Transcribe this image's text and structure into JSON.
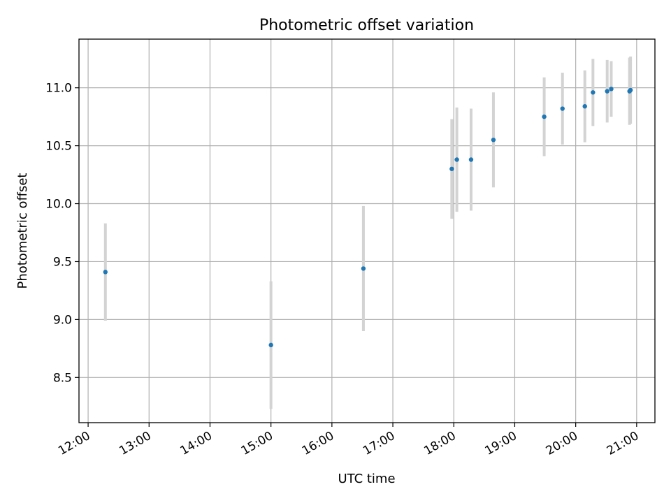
{
  "chart_data": {
    "type": "scatter",
    "title": "Photometric offset variation",
    "xlabel": "UTC time",
    "ylabel": "Photometric offset",
    "x_ticks": [
      "12:00",
      "13:00",
      "14:00",
      "15:00",
      "16:00",
      "17:00",
      "18:00",
      "19:00",
      "20:00",
      "21:00"
    ],
    "y_ticks": [
      "8.5",
      "9.0",
      "9.5",
      "10.0",
      "10.5",
      "11.0"
    ],
    "xlim": [
      "11:51",
      "21:18"
    ],
    "ylim": [
      8.11,
      11.42
    ],
    "grid": true,
    "colors": {
      "point": "#1f77b4",
      "errorbar": "#d3d3d3",
      "grid": "#b0b0b0"
    },
    "series": [
      {
        "points": [
          {
            "x": "12:17",
            "y": 9.41,
            "err": 0.42
          },
          {
            "x": "15:00",
            "y": 8.78,
            "err": 0.55
          },
          {
            "x": "16:31",
            "y": 9.44,
            "err": 0.54
          },
          {
            "x": "17:58",
            "y": 10.3,
            "err": 0.43
          },
          {
            "x": "18:03",
            "y": 10.38,
            "err": 0.45
          },
          {
            "x": "18:17",
            "y": 10.38,
            "err": 0.44
          },
          {
            "x": "18:39",
            "y": 10.55,
            "err": 0.41
          },
          {
            "x": "19:29",
            "y": 10.75,
            "err": 0.34
          },
          {
            "x": "19:47",
            "y": 10.82,
            "err": 0.31
          },
          {
            "x": "20:09",
            "y": 10.84,
            "err": 0.31
          },
          {
            "x": "20:17",
            "y": 10.96,
            "err": 0.29
          },
          {
            "x": "20:31",
            "y": 10.97,
            "err": 0.27
          },
          {
            "x": "20:35",
            "y": 10.99,
            "err": 0.24
          },
          {
            "x": "20:53",
            "y": 10.97,
            "err": 0.29
          },
          {
            "x": "20:54",
            "y": 10.98,
            "err": 0.29
          }
        ]
      }
    ]
  }
}
